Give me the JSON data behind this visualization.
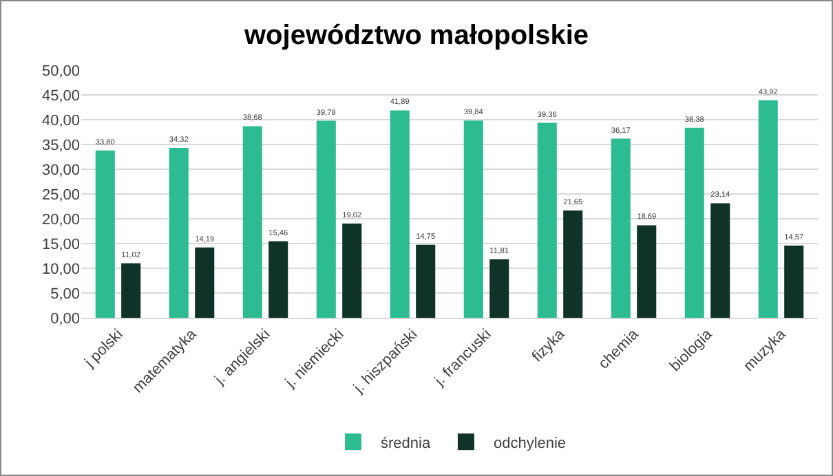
{
  "chart_data": {
    "type": "bar",
    "title": "województwo małopolskie",
    "categories": [
      "j polski",
      "matematyka",
      "j. angielski",
      "j. niemiecki",
      "j. hiszpański",
      "j. francuski",
      "fizyka",
      "chemia",
      "biologia",
      "muzyka"
    ],
    "series": [
      {
        "name": "średnia",
        "color": "#2dbb92",
        "values": [
          33.8,
          34.32,
          38.68,
          39.78,
          41.89,
          39.84,
          39.36,
          36.17,
          38.38,
          43.92
        ],
        "value_labels": [
          "33,80",
          "34,32",
          "38,68",
          "39,78",
          "41,89",
          "39,84",
          "39,36",
          "36,17",
          "38,38",
          "43,92"
        ]
      },
      {
        "name": "odchylenie",
        "color": "#0f3329",
        "values": [
          11.02,
          14.19,
          15.46,
          19.02,
          14.75,
          11.81,
          21.65,
          18.69,
          23.14,
          14.57
        ],
        "value_labels": [
          "11,02",
          "14,19",
          "15,46",
          "19,02",
          "14,75",
          "11,81",
          "21,65",
          "18,69",
          "23,14",
          "14,57"
        ]
      }
    ],
    "ylim": [
      0,
      50
    ],
    "yticks": [
      {
        "value": 0,
        "label": "0,00"
      },
      {
        "value": 5,
        "label": "5,00"
      },
      {
        "value": 10,
        "label": "10,00"
      },
      {
        "value": 15,
        "label": "15,00"
      },
      {
        "value": 20,
        "label": "20,00"
      },
      {
        "value": 25,
        "label": "25,00"
      },
      {
        "value": 30,
        "label": "30,00"
      },
      {
        "value": 35,
        "label": "35,00"
      },
      {
        "value": 40,
        "label": "40,00"
      },
      {
        "value": 45,
        "label": "45,00"
      },
      {
        "value": 50,
        "label": "50,00"
      }
    ],
    "grid": "y",
    "legend": "bottom"
  }
}
